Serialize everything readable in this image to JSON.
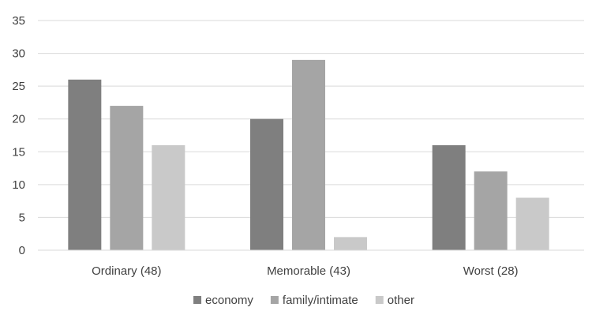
{
  "chart_data": {
    "type": "bar",
    "title": "",
    "xlabel": "",
    "ylabel": "",
    "categories": [
      "Ordinary (48)",
      "Memorable (43)",
      "Worst (28)"
    ],
    "series": [
      {
        "name": "economy",
        "values": [
          26,
          20,
          16
        ],
        "color": "#7f7f7f"
      },
      {
        "name": "family/intimate",
        "values": [
          22,
          29,
          12
        ],
        "color": "#a5a5a5"
      },
      {
        "name": "other",
        "values": [
          16,
          2,
          8
        ],
        "color": "#c9c9c9"
      }
    ],
    "ylim": [
      0,
      35
    ],
    "yticks": [
      "0",
      "5",
      "10",
      "15",
      "20",
      "25",
      "30",
      "35"
    ],
    "grid": true,
    "gridline_color": "#d9d9d9",
    "legend_position": "bottom"
  }
}
